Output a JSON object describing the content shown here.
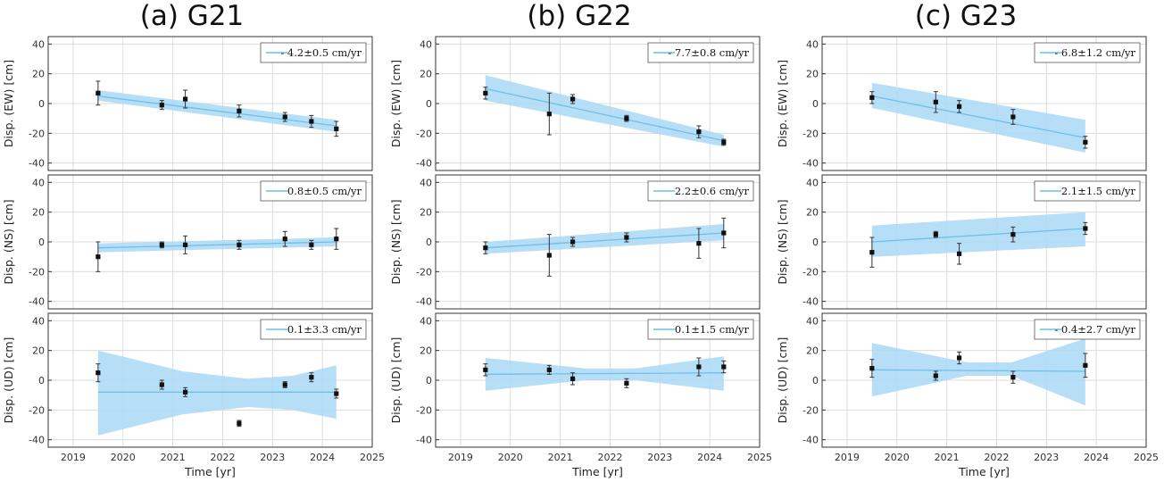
{
  "figure": {
    "column_titles": [
      "(a) G21",
      "(b) G22",
      "(c) G23"
    ],
    "xlabel": "Time [yr]",
    "row_ylabels": [
      "Disp. (EW) [cm]",
      "Disp. (NS) [cm]",
      "Disp. (UD) [cm]"
    ]
  },
  "colors": {
    "fit_line": "#6fbfe6",
    "band": "#a9d9f6",
    "points": "#111111",
    "grid": "#dcdcdc",
    "axes": "#333333"
  },
  "chart_data": [
    {
      "type": "scatter",
      "station": "G21",
      "component": "EW",
      "title": "(a) G21",
      "ylabel": "Disp. (EW) [cm]",
      "xlabel": "",
      "xlim": [
        2018.5,
        2025
      ],
      "ylim": [
        -45,
        45
      ],
      "xticks": [
        2019,
        2020,
        2021,
        2022,
        2023,
        2024,
        2025
      ],
      "yticks": [
        -40,
        -20,
        0,
        20,
        40
      ],
      "legend": "- 4.2±0.5 cm/yr",
      "points": [
        {
          "x": 2019.5,
          "y": 7,
          "err": 8
        },
        {
          "x": 2020.78,
          "y": -1,
          "err": 3
        },
        {
          "x": 2021.25,
          "y": 3,
          "err": 6
        },
        {
          "x": 2022.33,
          "y": -5,
          "err": 4
        },
        {
          "x": 2023.25,
          "y": -9,
          "err": 3
        },
        {
          "x": 2023.78,
          "y": -12,
          "err": 4
        },
        {
          "x": 2024.28,
          "y": -17,
          "err": 5
        }
      ],
      "fit": {
        "x": [
          2019.5,
          2024.28
        ],
        "y": [
          5,
          -15
        ]
      },
      "band": {
        "x": [
          2019.5,
          2024.28
        ],
        "upper": [
          9,
          -11
        ],
        "lower": [
          2,
          -19
        ]
      }
    },
    {
      "type": "scatter",
      "station": "G22",
      "component": "EW",
      "title": "(b) G22",
      "ylabel": "Disp. (EW) [cm]",
      "xlabel": "",
      "xlim": [
        2018.5,
        2025
      ],
      "ylim": [
        -45,
        45
      ],
      "xticks": [
        2019,
        2020,
        2021,
        2022,
        2023,
        2024,
        2025
      ],
      "yticks": [
        -40,
        -20,
        0,
        20,
        40
      ],
      "legend": "- 7.7±0.8 cm/yr",
      "points": [
        {
          "x": 2019.5,
          "y": 7,
          "err": 4
        },
        {
          "x": 2020.78,
          "y": -7,
          "err": 14
        },
        {
          "x": 2021.25,
          "y": 3,
          "err": 3
        },
        {
          "x": 2022.33,
          "y": -10,
          "err": 2
        },
        {
          "x": 2023.78,
          "y": -19,
          "err": 4
        },
        {
          "x": 2024.28,
          "y": -26,
          "err": 2
        }
      ],
      "fit": {
        "x": [
          2019.5,
          2024.28
        ],
        "y": [
          10,
          -25
        ]
      },
      "band": {
        "x": [
          2019.5,
          2024.28
        ],
        "upper": [
          19,
          -21
        ],
        "lower": [
          2,
          -29
        ]
      }
    },
    {
      "type": "scatter",
      "station": "G23",
      "component": "EW",
      "title": "(c) G23",
      "ylabel": "Disp. (EW) [cm]",
      "xlabel": "",
      "xlim": [
        2018.5,
        2025
      ],
      "ylim": [
        -45,
        45
      ],
      "xticks": [
        2019,
        2020,
        2021,
        2022,
        2023,
        2024,
        2025
      ],
      "yticks": [
        -40,
        -20,
        0,
        20,
        40
      ],
      "legend": "- 6.8±1.2 cm/yr",
      "points": [
        {
          "x": 2019.5,
          "y": 4,
          "err": 4
        },
        {
          "x": 2020.78,
          "y": 1,
          "err": 7
        },
        {
          "x": 2021.25,
          "y": -2,
          "err": 4
        },
        {
          "x": 2022.33,
          "y": -9,
          "err": 5
        },
        {
          "x": 2023.78,
          "y": -26,
          "err": 4
        }
      ],
      "fit": {
        "x": [
          2019.5,
          2023.78
        ],
        "y": [
          5,
          -23
        ]
      },
      "band": {
        "x": [
          2019.5,
          2023.78
        ],
        "upper": [
          14,
          -11
        ],
        "lower": [
          -3,
          -33
        ]
      }
    },
    {
      "type": "scatter",
      "station": "G21",
      "component": "NS",
      "title": "",
      "ylabel": "Disp. (NS) [cm]",
      "xlabel": "",
      "xlim": [
        2018.5,
        2025
      ],
      "ylim": [
        -45,
        45
      ],
      "xticks": [
        2019,
        2020,
        2021,
        2022,
        2023,
        2024,
        2025
      ],
      "yticks": [
        -40,
        -20,
        0,
        20,
        40
      ],
      "legend": "0.8±0.5 cm/yr",
      "points": [
        {
          "x": 2019.5,
          "y": -10,
          "err": 10
        },
        {
          "x": 2020.78,
          "y": -2,
          "err": 2
        },
        {
          "x": 2021.25,
          "y": -2,
          "err": 6
        },
        {
          "x": 2022.33,
          "y": -2,
          "err": 3
        },
        {
          "x": 2023.25,
          "y": 2,
          "err": 5
        },
        {
          "x": 2023.78,
          "y": -2,
          "err": 3
        },
        {
          "x": 2024.28,
          "y": 2,
          "err": 7
        }
      ],
      "fit": {
        "x": [
          2019.5,
          2024.28
        ],
        "y": [
          -4,
          0
        ]
      },
      "band": {
        "x": [
          2019.5,
          2024.28
        ],
        "upper": [
          -1,
          3
        ],
        "lower": [
          -7,
          -3
        ]
      }
    },
    {
      "type": "scatter",
      "station": "G22",
      "component": "NS",
      "title": "",
      "ylabel": "Disp. (NS) [cm]",
      "xlabel": "",
      "xlim": [
        2018.5,
        2025
      ],
      "ylim": [
        -45,
        45
      ],
      "xticks": [
        2019,
        2020,
        2021,
        2022,
        2023,
        2024,
        2025
      ],
      "yticks": [
        -40,
        -20,
        0,
        20,
        40
      ],
      "legend": "2.2±0.6 cm/yr",
      "points": [
        {
          "x": 2019.5,
          "y": -4,
          "err": 4
        },
        {
          "x": 2020.78,
          "y": -9,
          "err": 14
        },
        {
          "x": 2021.25,
          "y": 0,
          "err": 3
        },
        {
          "x": 2022.33,
          "y": 3,
          "err": 3
        },
        {
          "x": 2023.78,
          "y": -1,
          "err": 10
        },
        {
          "x": 2024.28,
          "y": 6,
          "err": 10
        }
      ],
      "fit": {
        "x": [
          2019.5,
          2024.28
        ],
        "y": [
          -4,
          6
        ]
      },
      "band": {
        "x": [
          2019.5,
          2024.28
        ],
        "upper": [
          0,
          12
        ],
        "lower": [
          -8,
          1
        ]
      }
    },
    {
      "type": "scatter",
      "station": "G23",
      "component": "NS",
      "title": "",
      "ylabel": "Disp. (NS) [cm]",
      "xlabel": "",
      "xlim": [
        2018.5,
        2025
      ],
      "ylim": [
        -45,
        45
      ],
      "xticks": [
        2019,
        2020,
        2021,
        2022,
        2023,
        2024,
        2025
      ],
      "yticks": [
        -40,
        -20,
        0,
        20,
        40
      ],
      "legend": "2.1±1.5 cm/yr",
      "points": [
        {
          "x": 2019.5,
          "y": -7,
          "err": 10
        },
        {
          "x": 2020.78,
          "y": 5,
          "err": 2
        },
        {
          "x": 2021.25,
          "y": -8,
          "err": 7
        },
        {
          "x": 2022.33,
          "y": 5,
          "err": 5
        },
        {
          "x": 2023.78,
          "y": 9,
          "err": 4
        }
      ],
      "fit": {
        "x": [
          2019.5,
          2023.78
        ],
        "y": [
          0,
          9
        ]
      },
      "band": {
        "x": [
          2019.5,
          2023.78
        ],
        "upper": [
          11,
          20
        ],
        "lower": [
          -10,
          -3
        ]
      }
    },
    {
      "type": "scatter",
      "station": "G21",
      "component": "UD",
      "title": "",
      "ylabel": "Disp. (UD) [cm]",
      "xlabel": "Time [yr]",
      "xlim": [
        2018.5,
        2025
      ],
      "ylim": [
        -45,
        45
      ],
      "xticks": [
        2019,
        2020,
        2021,
        2022,
        2023,
        2024,
        2025
      ],
      "yticks": [
        -40,
        -20,
        0,
        20,
        40
      ],
      "legend": "0.1±3.3 cm/yr",
      "points": [
        {
          "x": 2019.5,
          "y": 5,
          "err": 6
        },
        {
          "x": 2020.78,
          "y": -3,
          "err": 3
        },
        {
          "x": 2021.25,
          "y": -8,
          "err": 3
        },
        {
          "x": 2022.33,
          "y": -29,
          "err": 2
        },
        {
          "x": 2023.25,
          "y": -3,
          "err": 2
        },
        {
          "x": 2023.78,
          "y": 2,
          "err": 3
        },
        {
          "x": 2024.28,
          "y": -9,
          "err": 3
        }
      ],
      "fit": {
        "x": [
          2019.5,
          2024.28
        ],
        "y": [
          -8,
          -8
        ]
      },
      "band": {
        "x": [
          2019.5,
          2021.2,
          2022.5,
          2023.4,
          2024.28
        ],
        "upper": [
          20,
          6,
          1,
          3,
          10
        ],
        "lower": [
          -37,
          -23,
          -18,
          -20,
          -26
        ]
      }
    },
    {
      "type": "scatter",
      "station": "G22",
      "component": "UD",
      "title": "",
      "ylabel": "Disp. (UD) [cm]",
      "xlabel": "Time [yr]",
      "xlim": [
        2018.5,
        2025
      ],
      "ylim": [
        -45,
        45
      ],
      "xticks": [
        2019,
        2020,
        2021,
        2022,
        2023,
        2024,
        2025
      ],
      "yticks": [
        -40,
        -20,
        0,
        20,
        40
      ],
      "legend": "0.1±1.5 cm/yr",
      "points": [
        {
          "x": 2019.5,
          "y": 7,
          "err": 4
        },
        {
          "x": 2020.78,
          "y": 7,
          "err": 3
        },
        {
          "x": 2021.25,
          "y": 1,
          "err": 4
        },
        {
          "x": 2022.33,
          "y": -2,
          "err": 3
        },
        {
          "x": 2023.78,
          "y": 9,
          "err": 6
        },
        {
          "x": 2024.28,
          "y": 9,
          "err": 4
        }
      ],
      "fit": {
        "x": [
          2019.5,
          2024.28
        ],
        "y": [
          4,
          5
        ]
      },
      "band": {
        "x": [
          2019.5,
          2021.5,
          2022.5,
          2024.28
        ],
        "upper": [
          15,
          8,
          8,
          16
        ],
        "lower": [
          -7,
          0,
          0,
          -7
        ]
      }
    },
    {
      "type": "scatter",
      "station": "G23",
      "component": "UD",
      "title": "",
      "ylabel": "Disp. (UD) [cm]",
      "xlabel": "Time [yr]",
      "xlim": [
        2018.5,
        2025
      ],
      "ylim": [
        -45,
        45
      ],
      "xticks": [
        2019,
        2020,
        2021,
        2022,
        2023,
        2024,
        2025
      ],
      "yticks": [
        -40,
        -20,
        0,
        20,
        40
      ],
      "legend": "- 0.4±2.7 cm/yr",
      "points": [
        {
          "x": 2019.5,
          "y": 8,
          "err": 6
        },
        {
          "x": 2020.78,
          "y": 3,
          "err": 3
        },
        {
          "x": 2021.25,
          "y": 15,
          "err": 4
        },
        {
          "x": 2022.33,
          "y": 2,
          "err": 4
        },
        {
          "x": 2023.78,
          "y": 10,
          "err": 8
        }
      ],
      "fit": {
        "x": [
          2019.5,
          2023.78
        ],
        "y": [
          7,
          6
        ]
      },
      "band": {
        "x": [
          2019.5,
          2021.4,
          2022.3,
          2023.78
        ],
        "upper": [
          25,
          12,
          12,
          28
        ],
        "lower": [
          -11,
          3,
          3,
          -17
        ]
      }
    }
  ]
}
